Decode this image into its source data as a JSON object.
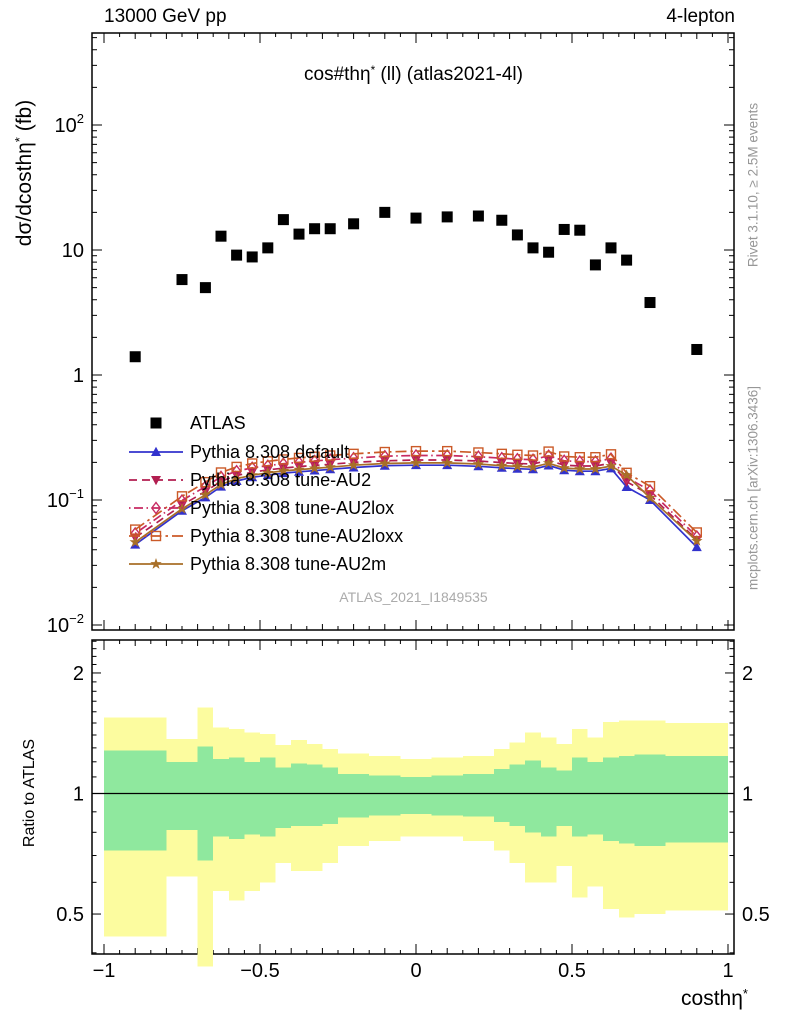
{
  "header": {
    "left": "13000 GeV pp",
    "right": "4-lepton"
  },
  "title": {
    "main": "cos#thη",
    "sup": "*",
    "rest": " (ll) (atlas2021-4l)"
  },
  "watermark": "ATLAS_2021_I1849535",
  "side_notes": {
    "right_top": "Rivet 3.1.10, ≥ 2.5M events",
    "right_bottom": "mcplots.cern.ch [arXiv:1306.3436]"
  },
  "axes": {
    "y_label": {
      "main": "dσ/dcosthη",
      "sup": "*",
      "rest": " (fb)"
    },
    "x_label": {
      "main": "costhη",
      "sup": "*"
    },
    "ratio_y_label": "Ratio to ATLAS",
    "top_y_ticks": [
      {
        "value": 100,
        "base": "10",
        "exp": "2"
      },
      {
        "value": 10,
        "base": "10",
        "exp": ""
      },
      {
        "value": 1,
        "base": "1",
        "exp": ""
      },
      {
        "value": 0.1,
        "base": "10",
        "exp": "−1"
      },
      {
        "value": 0.01,
        "base": "10",
        "exp": "−2"
      }
    ],
    "x_ticks": [
      {
        "value": -1,
        "label": "−1"
      },
      {
        "value": -0.5,
        "label": "−0.5"
      },
      {
        "value": 0,
        "label": "0"
      },
      {
        "value": 0.5,
        "label": "0.5"
      },
      {
        "value": 1,
        "label": "1"
      }
    ],
    "ratio_y_ticks": [
      {
        "value": 2,
        "label": "2"
      },
      {
        "value": 1,
        "label": "1"
      },
      {
        "value": 0.5,
        "label": "0.5"
      }
    ]
  },
  "colors": {
    "yellow_band": "#fcfc9f",
    "green_band": "#8fe89e",
    "atlas": "#000000",
    "pythia_default": "#3232cd",
    "pythia_au2": "#b21e50",
    "pythia_au2lox": "#c72a62",
    "pythia_au2loxx": "#cb5a28",
    "pythia_au2m": "#a86f28",
    "credit_gray": "#979797"
  },
  "chart_data": {
    "type": "line",
    "title": "cos#thη* (ll) (atlas2021-4l)",
    "xlabel": "costhη*",
    "ylabel": "dσ/dcosthη* (fb)",
    "xlim": [
      -1.04,
      1.02
    ],
    "ylim_log": [
      0.009,
      550
    ],
    "x": [
      -0.9,
      -0.75,
      -0.675,
      -0.625,
      -0.575,
      -0.525,
      -0.475,
      -0.425,
      -0.375,
      -0.325,
      -0.275,
      -0.2,
      -0.1,
      0,
      0.1,
      0.2,
      0.275,
      0.325,
      0.375,
      0.425,
      0.475,
      0.525,
      0.575,
      0.625,
      0.675,
      0.75,
      0.9
    ],
    "bin_edges": [
      -1,
      -0.8,
      -0.7,
      -0.65,
      -0.6,
      -0.55,
      -0.5,
      -0.45,
      -0.4,
      -0.35,
      -0.3,
      -0.25,
      -0.15,
      -0.05,
      0.05,
      0.15,
      0.25,
      0.3,
      0.35,
      0.4,
      0.45,
      0.5,
      0.55,
      0.6,
      0.65,
      0.7,
      0.8,
      1
    ],
    "series": [
      {
        "name": "ATLAS",
        "style": "points",
        "line": "none",
        "marker": "square",
        "color": "#000000",
        "values": [
          1.4,
          5.8,
          5.0,
          12.9,
          9.1,
          8.8,
          10.4,
          17.5,
          13.4,
          14.8,
          14.8,
          16.2,
          20.0,
          18.0,
          18.4,
          18.7,
          17.3,
          13.2,
          10.4,
          9.6,
          14.6,
          14.4,
          7.6,
          10.4,
          8.3,
          3.8,
          1.6
        ]
      },
      {
        "name": "Pythia 8.308 default",
        "style": "line",
        "line": "solid",
        "marker": "triangle-up",
        "color": "#3232cd",
        "values": [
          0.044,
          0.082,
          0.105,
          0.128,
          0.142,
          0.152,
          0.158,
          0.164,
          0.168,
          0.172,
          0.176,
          0.182,
          0.188,
          0.19,
          0.19,
          0.186,
          0.181,
          0.178,
          0.176,
          0.189,
          0.173,
          0.17,
          0.17,
          0.179,
          0.127,
          0.1,
          0.042
        ]
      },
      {
        "name": "Pythia 8.308 tune-AU2",
        "style": "line",
        "line": "dash",
        "marker": "triangle-down",
        "color": "#b21e50",
        "values": [
          0.05,
          0.091,
          0.117,
          0.141,
          0.157,
          0.167,
          0.174,
          0.18,
          0.185,
          0.189,
          0.193,
          0.2,
          0.206,
          0.209,
          0.209,
          0.205,
          0.199,
          0.196,
          0.194,
          0.208,
          0.19,
          0.187,
          0.187,
          0.197,
          0.14,
          0.11,
          0.048
        ]
      },
      {
        "name": "Pythia 8.308 tune-AU2lox",
        "style": "line",
        "line": "dashdot",
        "marker": "diamond-open",
        "color": "#c72a62",
        "values": [
          0.054,
          0.099,
          0.128,
          0.153,
          0.17,
          0.181,
          0.188,
          0.195,
          0.2,
          0.205,
          0.21,
          0.216,
          0.224,
          0.227,
          0.227,
          0.222,
          0.216,
          0.212,
          0.21,
          0.226,
          0.206,
          0.203,
          0.203,
          0.214,
          0.152,
          0.119,
          0.051
        ]
      },
      {
        "name": "Pythia 8.308 tune-AU2loxx",
        "style": "line",
        "line": "dashdot-long",
        "marker": "square-open",
        "color": "#cb5a28",
        "values": [
          0.058,
          0.107,
          0.139,
          0.166,
          0.184,
          0.196,
          0.204,
          0.211,
          0.217,
          0.222,
          0.227,
          0.234,
          0.242,
          0.246,
          0.246,
          0.24,
          0.234,
          0.23,
          0.227,
          0.244,
          0.223,
          0.22,
          0.22,
          0.232,
          0.165,
          0.129,
          0.055
        ]
      },
      {
        "name": "Pythia 8.308 tune-AU2m",
        "style": "line",
        "line": "solid",
        "marker": "star",
        "color": "#a86f28",
        "values": [
          0.046,
          0.085,
          0.11,
          0.133,
          0.148,
          0.158,
          0.165,
          0.171,
          0.175,
          0.179,
          0.183,
          0.19,
          0.196,
          0.198,
          0.198,
          0.194,
          0.188,
          0.186,
          0.183,
          0.197,
          0.18,
          0.177,
          0.177,
          0.187,
          0.158,
          0.104,
          0.047
        ]
      }
    ],
    "ratio": {
      "ylabel": "Ratio to ATLAS",
      "ylim_log": [
        0.395,
        2.42
      ],
      "reference": 1,
      "bands": {
        "edges": [
          -1,
          -0.8,
          -0.7,
          -0.65,
          -0.6,
          -0.55,
          -0.5,
          -0.45,
          -0.4,
          -0.35,
          -0.3,
          -0.25,
          -0.15,
          -0.05,
          0.05,
          0.15,
          0.25,
          0.3,
          0.35,
          0.4,
          0.45,
          0.5,
          0.55,
          0.6,
          0.65,
          0.7,
          0.8,
          1
        ],
        "yellow_hi": [
          1.55,
          1.37,
          1.64,
          1.46,
          1.45,
          1.42,
          1.41,
          1.32,
          1.36,
          1.33,
          1.29,
          1.26,
          1.24,
          1.22,
          1.23,
          1.24,
          1.29,
          1.34,
          1.42,
          1.38,
          1.33,
          1.45,
          1.38,
          1.51,
          1.52,
          1.52,
          1.5
        ],
        "yellow_lo": [
          0.44,
          0.62,
          0.37,
          0.57,
          0.54,
          0.57,
          0.6,
          0.67,
          0.64,
          0.64,
          0.67,
          0.74,
          0.76,
          0.78,
          0.78,
          0.76,
          0.72,
          0.67,
          0.6,
          0.6,
          0.66,
          0.55,
          0.585,
          0.515,
          0.49,
          0.5,
          0.51
        ],
        "green_hi": [
          1.28,
          1.2,
          1.31,
          1.22,
          1.23,
          1.2,
          1.23,
          1.16,
          1.19,
          1.18,
          1.16,
          1.12,
          1.11,
          1.1,
          1.11,
          1.12,
          1.15,
          1.18,
          1.21,
          1.16,
          1.14,
          1.23,
          1.2,
          1.23,
          1.24,
          1.25,
          1.24
        ],
        "green_lo": [
          0.72,
          0.81,
          0.68,
          0.78,
          0.77,
          0.79,
          0.78,
          0.82,
          0.83,
          0.83,
          0.84,
          0.87,
          0.88,
          0.89,
          0.88,
          0.875,
          0.85,
          0.83,
          0.8,
          0.78,
          0.83,
          0.78,
          0.79,
          0.76,
          0.75,
          0.74,
          0.755
        ]
      }
    }
  },
  "legend": {
    "items": [
      {
        "label": "ATLAS"
      },
      {
        "label": "Pythia 8.308 default"
      },
      {
        "label": "Pythia 8.308 tune-AU2"
      },
      {
        "label": "Pythia 8.308 tune-AU2lox"
      },
      {
        "label": "Pythia 8.308 tune-AU2loxx"
      },
      {
        "label": "Pythia 8.308 tune-AU2m"
      }
    ]
  }
}
